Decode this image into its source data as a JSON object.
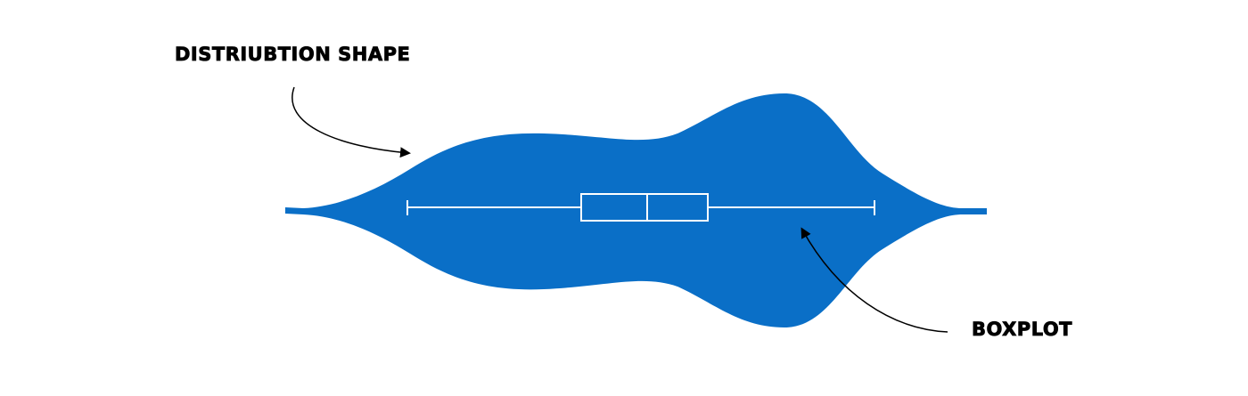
{
  "labels": {
    "distribution": "DISTRIUBTION SHAPE",
    "boxplot": "BOXPLOT"
  },
  "colors": {
    "violin_fill": "#0a6fc7",
    "boxplot_stroke": "#ffffff",
    "annotation": "#000000",
    "background": "#ffffff"
  },
  "icons": {
    "distribution_pointer": "curved-arrow-icon",
    "boxplot_pointer": "curved-arrow-icon"
  }
}
